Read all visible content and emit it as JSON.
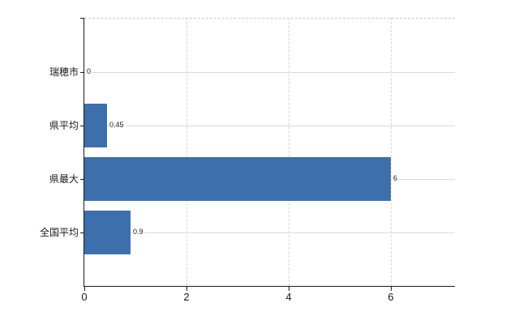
{
  "chart_data": {
    "type": "bar",
    "orientation": "horizontal",
    "title": "",
    "xlabel": "",
    "ylabel": "",
    "categories": [
      "瑞穂市",
      "県平均",
      "県最大",
      "全国平均"
    ],
    "values": [
      0,
      0.45,
      6,
      0.9
    ],
    "value_labels": [
      "0",
      "0.45",
      "6",
      "0.9"
    ],
    "xticks": [
      0,
      2,
      4,
      6
    ],
    "xtick_labels": [
      "0",
      "2",
      "4",
      "6"
    ],
    "xlim": [
      0,
      7.25
    ],
    "grid": true,
    "legend": false,
    "colors": {
      "bar": "#3d6fac",
      "axis": "#1a1a1a",
      "gridline": "#dcdcdc",
      "gridline_dashed": "#d6d6d6",
      "background": "#ffffff"
    }
  }
}
